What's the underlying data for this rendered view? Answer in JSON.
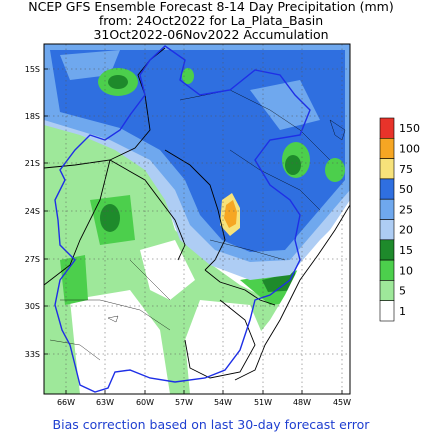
{
  "header": {
    "line1": "NCEP GFS Ensemble Forecast 8-14 Day Precipitation (mm)",
    "line2": "from: 24Oct2022   for La_Plata_Basin",
    "line3": "31Oct2022-06Nov2022 Accumulation"
  },
  "footer": {
    "text": "Bias correction based on last 30-day forecast error"
  },
  "map": {
    "lat_labels": [
      "15S",
      "18S",
      "21S",
      "24S",
      "27S",
      "30S",
      "33S"
    ],
    "lon_labels": [
      "66W",
      "63W",
      "60W",
      "57W",
      "54W",
      "51W",
      "48W",
      "45W"
    ]
  },
  "legend": {
    "levels": [
      {
        "label": "150",
        "color": "#e8332a"
      },
      {
        "label": "100",
        "color": "#f6a623"
      },
      {
        "label": "75",
        "color": "#f7e27a"
      },
      {
        "label": "50",
        "color": "#2f6fe0"
      },
      {
        "label": "25",
        "color": "#6fa8ee"
      },
      {
        "label": "20",
        "color": "#aecdf4"
      },
      {
        "label": "15",
        "color": "#1e8a2b"
      },
      {
        "label": "10",
        "color": "#4ccf4c"
      },
      {
        "label": "5",
        "color": "#9ee89a"
      },
      {
        "label": "1",
        "color": "#ffffff"
      }
    ]
  },
  "colors": {
    "ocean": "#ffffff",
    "basin_outline": "#1e2fe6",
    "border": "#000000"
  }
}
